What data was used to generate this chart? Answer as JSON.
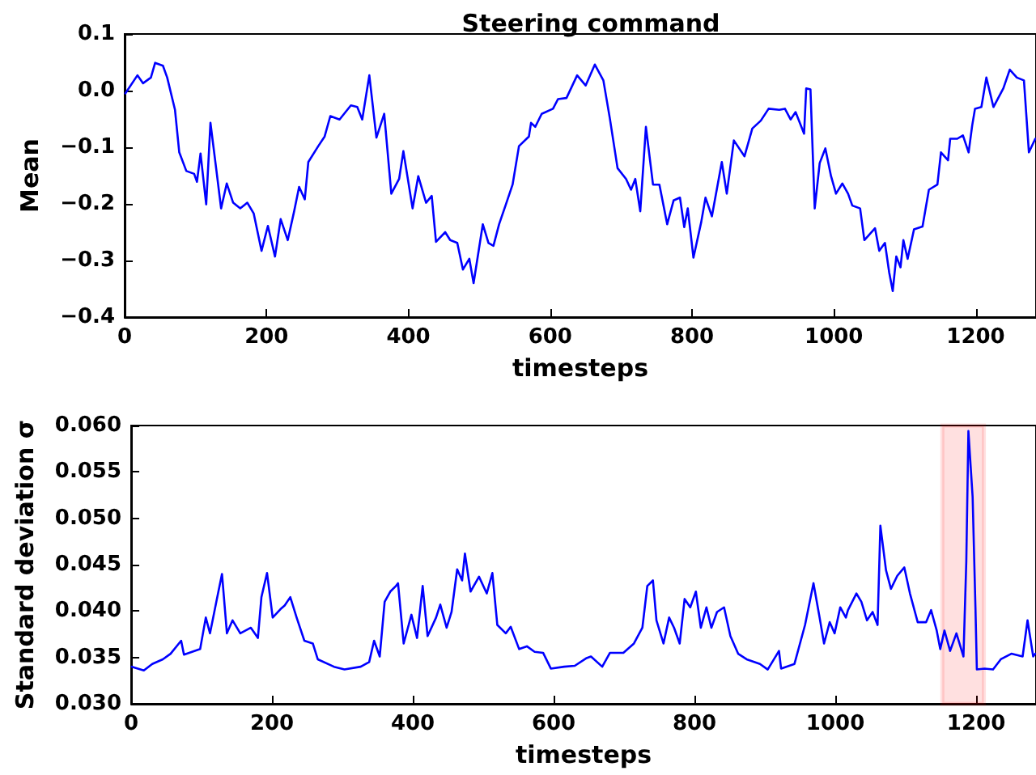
{
  "chart_data": [
    {
      "type": "line",
      "title": "Steering command",
      "xlabel": "timesteps",
      "ylabel": "Mean",
      "color": "#0000ff",
      "x": [
        1,
        18,
        26,
        37,
        43,
        54,
        60,
        71,
        77,
        87,
        98,
        102,
        107,
        115,
        121,
        129,
        136,
        144,
        153,
        163,
        173,
        182,
        193,
        202,
        212,
        220,
        230,
        239,
        246,
        254,
        259,
        273,
        282,
        290,
        303,
        319,
        328,
        335,
        345,
        355,
        366,
        376,
        387,
        393,
        406,
        414,
        425,
        433,
        439,
        452,
        459,
        469,
        477,
        486,
        492,
        505,
        513,
        520,
        528,
        537,
        547,
        556,
        570,
        573,
        579,
        588,
        604,
        611,
        623,
        638,
        650,
        663,
        675,
        684,
        695,
        707,
        714,
        720,
        727,
        735,
        745,
        754,
        765,
        774,
        783,
        789,
        794,
        802,
        813,
        819,
        828,
        842,
        849,
        859,
        874,
        885,
        897,
        908,
        923,
        931,
        939,
        946,
        958,
        961,
        967,
        973,
        980,
        988,
        996,
        1003,
        1012,
        1020,
        1026,
        1037,
        1043,
        1058,
        1064,
        1072,
        1078,
        1083,
        1088,
        1094,
        1098,
        1104,
        1113,
        1125,
        1134,
        1146,
        1151,
        1161,
        1164,
        1174,
        1182,
        1190,
        1195,
        1199,
        1208,
        1215,
        1225,
        1239,
        1248,
        1258,
        1268,
        1275,
        1284
      ],
      "values": [
        -0.005,
        0.027,
        0.013,
        0.023,
        0.049,
        0.044,
        0.023,
        -0.034,
        -0.109,
        -0.142,
        -0.147,
        -0.161,
        -0.111,
        -0.201,
        -0.057,
        -0.137,
        -0.208,
        -0.164,
        -0.198,
        -0.208,
        -0.198,
        -0.217,
        -0.283,
        -0.239,
        -0.293,
        -0.227,
        -0.264,
        -0.213,
        -0.17,
        -0.192,
        -0.126,
        -0.098,
        -0.081,
        -0.045,
        -0.051,
        -0.026,
        -0.029,
        -0.051,
        0.027,
        -0.083,
        -0.041,
        -0.182,
        -0.156,
        -0.107,
        -0.208,
        -0.151,
        -0.198,
        -0.186,
        -0.267,
        -0.25,
        -0.264,
        -0.269,
        -0.316,
        -0.297,
        -0.34,
        -0.236,
        -0.269,
        -0.274,
        -0.236,
        -0.203,
        -0.166,
        -0.098,
        -0.081,
        -0.057,
        -0.064,
        -0.041,
        -0.032,
        -0.015,
        -0.013,
        0.027,
        0.009,
        0.046,
        0.018,
        -0.048,
        -0.137,
        -0.156,
        -0.175,
        -0.156,
        -0.213,
        -0.064,
        -0.166,
        -0.166,
        -0.236,
        -0.194,
        -0.189,
        -0.241,
        -0.208,
        -0.295,
        -0.232,
        -0.189,
        -0.222,
        -0.126,
        -0.182,
        -0.088,
        -0.116,
        -0.067,
        -0.053,
        -0.032,
        -0.034,
        -0.032,
        -0.051,
        -0.038,
        -0.076,
        0.004,
        0.002,
        -0.208,
        -0.128,
        -0.102,
        -0.151,
        -0.182,
        -0.164,
        -0.182,
        -0.203,
        -0.208,
        -0.264,
        -0.243,
        -0.283,
        -0.269,
        -0.321,
        -0.354,
        -0.293,
        -0.312,
        -0.264,
        -0.297,
        -0.245,
        -0.24,
        -0.175,
        -0.166,
        -0.109,
        -0.123,
        -0.085,
        -0.085,
        -0.079,
        -0.109,
        -0.062,
        -0.032,
        -0.029,
        0.023,
        -0.029,
        0.004,
        0.037,
        0.023,
        0.018,
        -0.109,
        -0.085
      ],
      "xlim": [
        0,
        1285
      ],
      "xticks": [
        0,
        200,
        400,
        600,
        800,
        1000,
        1200
      ],
      "ylim": [
        -0.4,
        0.1
      ],
      "yticks": [
        {
          "value": -0.4,
          "label": "−0.4"
        },
        {
          "value": -0.3,
          "label": "−0.3"
        },
        {
          "value": -0.2,
          "label": "−0.2"
        },
        {
          "value": -0.1,
          "label": "−0.1"
        },
        {
          "value": 0,
          "label": "0.0"
        },
        {
          "value": 0.1,
          "label": "0.1"
        }
      ]
    },
    {
      "type": "line",
      "xlabel": "timesteps",
      "ylabel": "Standard deviation σ",
      "color": "#0000ff",
      "x": [
        1,
        18,
        30,
        45,
        56,
        71,
        75,
        98,
        106,
        112,
        121,
        129,
        136,
        144,
        155,
        170,
        180,
        185,
        193,
        201,
        212,
        218,
        226,
        235,
        246,
        258,
        265,
        288,
        303,
        326,
        338,
        345,
        353,
        360,
        368,
        376,
        379,
        387,
        398,
        406,
        414,
        421,
        433,
        439,
        448,
        455,
        463,
        470,
        474,
        482,
        494,
        505,
        513,
        520,
        532,
        539,
        551,
        562,
        573,
        585,
        596,
        615,
        630,
        646,
        653,
        669,
        680,
        699,
        714,
        726,
        733,
        741,
        746,
        756,
        764,
        771,
        779,
        786,
        794,
        802,
        809,
        817,
        824,
        832,
        842,
        851,
        862,
        874,
        893,
        904,
        920,
        923,
        942,
        957,
        969,
        977,
        984,
        992,
        999,
        1007,
        1015,
        1018,
        1030,
        1037,
        1045,
        1053,
        1060,
        1064,
        1072,
        1079,
        1088,
        1098,
        1106,
        1117,
        1129,
        1136,
        1144,
        1149,
        1155,
        1163,
        1172,
        1182,
        1186,
        1189,
        1195,
        1199,
        1201,
        1212,
        1224,
        1235,
        1250,
        1266,
        1273,
        1281,
        1284
      ],
      "values": [
        0.034,
        0.0336,
        0.0343,
        0.0348,
        0.0354,
        0.0368,
        0.0353,
        0.0359,
        0.0393,
        0.0376,
        0.041,
        0.044,
        0.0376,
        0.039,
        0.0376,
        0.0382,
        0.0371,
        0.0415,
        0.0441,
        0.0393,
        0.0402,
        0.0406,
        0.0415,
        0.0393,
        0.0368,
        0.0365,
        0.0348,
        0.034,
        0.0337,
        0.034,
        0.0345,
        0.0368,
        0.0351,
        0.041,
        0.0421,
        0.0427,
        0.043,
        0.0365,
        0.0396,
        0.0371,
        0.0427,
        0.0373,
        0.0393,
        0.0407,
        0.0382,
        0.0399,
        0.0445,
        0.0433,
        0.0462,
        0.0421,
        0.0437,
        0.0419,
        0.0441,
        0.0385,
        0.0376,
        0.0383,
        0.0359,
        0.0362,
        0.0356,
        0.0355,
        0.0338,
        0.034,
        0.0341,
        0.0349,
        0.0351,
        0.034,
        0.0355,
        0.0355,
        0.0365,
        0.0382,
        0.0427,
        0.0433,
        0.039,
        0.0365,
        0.0393,
        0.0382,
        0.0365,
        0.0413,
        0.0404,
        0.0421,
        0.0382,
        0.0404,
        0.0382,
        0.0399,
        0.0404,
        0.0373,
        0.0354,
        0.0348,
        0.0343,
        0.0337,
        0.0357,
        0.0338,
        0.0343,
        0.0385,
        0.043,
        0.0396,
        0.0365,
        0.0388,
        0.0376,
        0.0404,
        0.0393,
        0.0401,
        0.0419,
        0.041,
        0.039,
        0.0399,
        0.0385,
        0.0492,
        0.0444,
        0.0424,
        0.0438,
        0.0447,
        0.0419,
        0.0388,
        0.0388,
        0.0401,
        0.0379,
        0.0359,
        0.0379,
        0.0357,
        0.0376,
        0.0351,
        0.0453,
        0.0594,
        0.0523,
        0.0404,
        0.0337,
        0.0338,
        0.0337,
        0.0348,
        0.0354,
        0.0351,
        0.039,
        0.0351,
        0.0354
      ],
      "xlim": [
        0,
        1285
      ],
      "xticks": [
        0,
        200,
        400,
        600,
        800,
        1000,
        1200
      ],
      "ylim": [
        0.03,
        0.06
      ],
      "yticks": [
        {
          "value": 0.03,
          "label": "0.030"
        },
        {
          "value": 0.035,
          "label": "0.035"
        },
        {
          "value": 0.04,
          "label": "0.040"
        },
        {
          "value": 0.045,
          "label": "0.045"
        },
        {
          "value": 0.05,
          "label": "0.050"
        },
        {
          "value": 0.055,
          "label": "0.055"
        },
        {
          "value": 0.06,
          "label": "0.060"
        }
      ],
      "bands": [
        {
          "axis": "x",
          "from": 1152,
          "to": 1211,
          "color": "#ff0000"
        }
      ]
    }
  ]
}
